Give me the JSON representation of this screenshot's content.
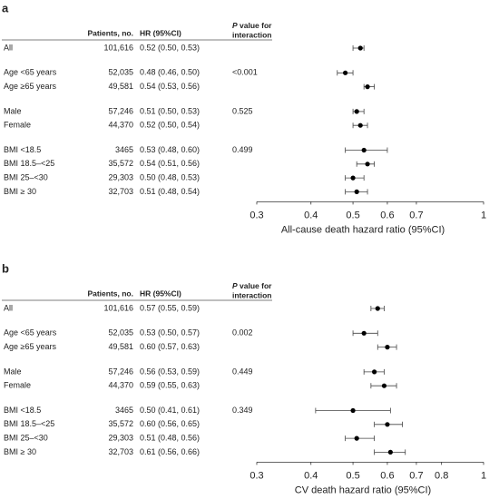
{
  "chart_data": [
    {
      "type": "forest",
      "panel": "a",
      "headers": {
        "patients": "Patients, no.",
        "hr": "HR (95%CI)",
        "p_italic": "P",
        "p": [
          "value for",
          "interaction"
        ]
      },
      "categories": [
        "All",
        "Age <65 years",
        "Age ≥65 years",
        "Male",
        "Female",
        "BMI <18.5",
        "BMI 18.5–<25",
        "BMI 25–<30",
        "BMI ≥ 30"
      ],
      "patients": [
        "101,616",
        "52,035",
        "49,581",
        "57,246",
        "44,370",
        "3465",
        "35,572",
        "29,303",
        "32,703"
      ],
      "value_labels": [
        "0.52 (0.50, 0.53)",
        "0.48 (0.46, 0.50)",
        "0.54 (0.53, 0.56)",
        "0.51 (0.50, 0.53)",
        "0.52 (0.50, 0.54)",
        "0.53 (0.48, 0.60)",
        "0.54 (0.51, 0.56)",
        "0.50 (0.48, 0.53)",
        "0.51 (0.48, 0.54)"
      ],
      "p_values": [
        null,
        "<0.001",
        null,
        "0.525",
        null,
        "0.499",
        null,
        null,
        null
      ],
      "values": [
        0.52,
        0.48,
        0.54,
        0.51,
        0.52,
        0.53,
        0.54,
        0.5,
        0.51
      ],
      "lower": [
        0.5,
        0.46,
        0.53,
        0.5,
        0.5,
        0.48,
        0.51,
        0.48,
        0.48
      ],
      "upper": [
        0.53,
        0.5,
        0.56,
        0.53,
        0.54,
        0.6,
        0.56,
        0.53,
        0.54
      ],
      "xlabel": "All-cause death hazard ratio (95%CI)",
      "xlim": [
        0.3,
        1
      ],
      "xticks": [
        0.3,
        0.4,
        0.5,
        0.6,
        0.7,
        1
      ],
      "log_scale": true,
      "color": "#000000"
    },
    {
      "type": "forest",
      "panel": "b",
      "headers": {
        "patients": "Patients, no.",
        "hr": "HR (95%CI)",
        "p_italic": "P",
        "p": [
          "value for",
          "interaction"
        ]
      },
      "categories": [
        "All",
        "Age <65 years",
        "Age ≥65 years",
        "Male",
        "Female",
        "BMI <18.5",
        "BMI 18.5–<25",
        "BMI 25–<30",
        "BMI ≥ 30"
      ],
      "patients": [
        "101,616",
        "52,035",
        "49,581",
        "57,246",
        "44,370",
        "3465",
        "35,572",
        "29,303",
        "32,703"
      ],
      "value_labels": [
        "0.57 (0.55, 0.59)",
        "0.53 (0.50, 0.57)",
        "0.60 (0.57, 0.63)",
        "0.56 (0.53, 0.59)",
        "0.59 (0.55, 0.63)",
        "0.50 (0.41, 0.61)",
        "0.60 (0.56, 0.65)",
        "0.51 (0.48, 0.56)",
        "0.61 (0.56, 0.66)"
      ],
      "p_values": [
        null,
        "0.002",
        null,
        "0.449",
        null,
        "0.349",
        null,
        null,
        null
      ],
      "values": [
        0.57,
        0.53,
        0.6,
        0.56,
        0.59,
        0.5,
        0.6,
        0.51,
        0.61
      ],
      "lower": [
        0.55,
        0.5,
        0.57,
        0.53,
        0.55,
        0.41,
        0.56,
        0.48,
        0.56
      ],
      "upper": [
        0.59,
        0.57,
        0.63,
        0.59,
        0.63,
        0.61,
        0.65,
        0.56,
        0.66
      ],
      "xlabel": "CV death hazard ratio (95%CI)",
      "xlim": [
        0.3,
        1
      ],
      "xticks": [
        0.3,
        0.4,
        0.5,
        0.6,
        0.7,
        0.8,
        1
      ],
      "log_scale": true,
      "color": "#000000"
    }
  ]
}
